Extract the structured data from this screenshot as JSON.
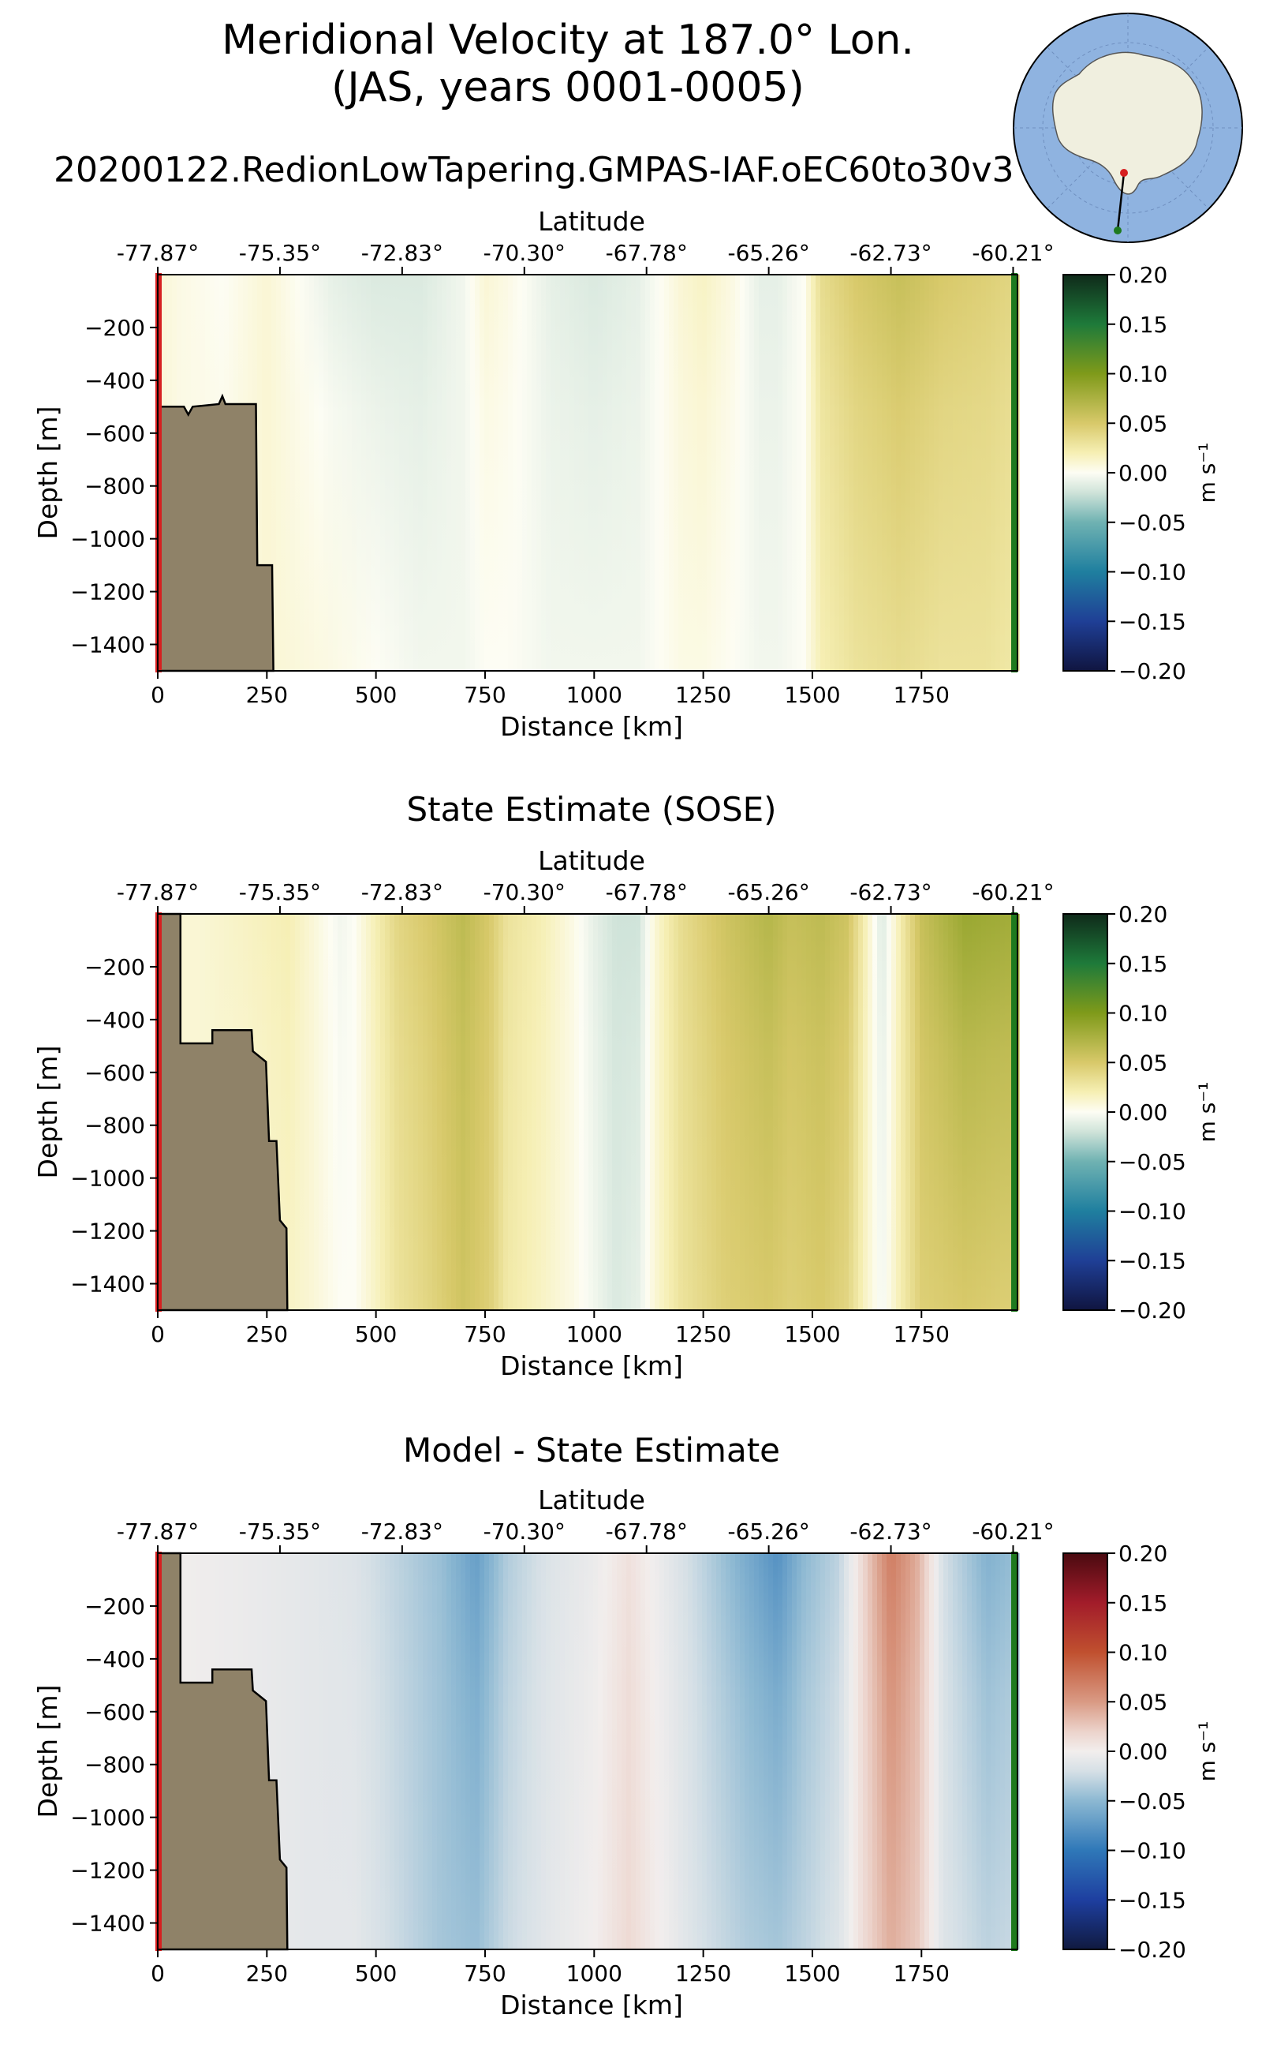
{
  "figure": {
    "title_line1": "Meridional Velocity at 187.0° Lon.",
    "title_line2": "(JAS, years 0001-0005)",
    "subtitle": "20200122.RedionLowTapering.GMPAS-IAF.oEC60to30v3"
  },
  "colors": {
    "land": "#8f8268",
    "start_marker": "#d62020",
    "end_marker": "#1e7a1e",
    "globe_ocean": "#8fb3e0",
    "globe_land": "#f0efdf"
  },
  "chart_data": [
    {
      "id": "model",
      "type": "heatmap",
      "title": "",
      "xlabel": "Distance [km]",
      "ylabel": "Depth [m]",
      "top_axis_label": "Latitude",
      "top_ticks": [
        "-77.87°",
        "-75.35°",
        "-72.83°",
        "-70.30°",
        "-67.78°",
        "-65.26°",
        "-62.73°",
        "-60.21°"
      ],
      "top_tick_km": [
        0,
        280,
        560,
        840,
        1120,
        1400,
        1680,
        1960
      ],
      "xlim": [
        0,
        1970
      ],
      "ylim": [
        -1500,
        0
      ],
      "xticks": [
        0,
        250,
        500,
        750,
        1000,
        1250,
        1500,
        1750
      ],
      "yticks": [
        -200,
        -400,
        -600,
        -800,
        -1000,
        -1200,
        -1400
      ],
      "colorbar": {
        "label": "m s⁻¹",
        "ticks": [
          "0.20",
          "0.15",
          "0.10",
          "0.05",
          "0.00",
          "−0.05",
          "−0.10",
          "−0.15",
          "−0.20"
        ],
        "range": [
          -0.2,
          0.2
        ],
        "cmap": "velocity"
      },
      "bathymetry": [
        [
          0,
          -500
        ],
        [
          60,
          -500
        ],
        [
          70,
          -530
        ],
        [
          80,
          -500
        ],
        [
          140,
          -490
        ],
        [
          148,
          -460
        ],
        [
          155,
          -490
        ],
        [
          225,
          -490
        ],
        [
          228,
          -1100
        ],
        [
          262,
          -1100
        ],
        [
          265,
          -1500
        ]
      ],
      "velocity_profile": {
        "x_km": [
          0,
          50,
          150,
          250,
          400,
          500,
          600,
          700,
          750,
          800,
          900,
          1000,
          1100,
          1150,
          1200,
          1250,
          1320,
          1380,
          1420,
          1480,
          1520,
          1600,
          1700,
          1800,
          1900,
          1970
        ],
        "v_surface": [
          0.01,
          0.005,
          0.0,
          0.01,
          -0.01,
          -0.015,
          -0.015,
          -0.005,
          0.01,
          0.005,
          -0.01,
          -0.015,
          -0.01,
          0.0,
          0.01,
          0.015,
          0.005,
          -0.01,
          -0.01,
          0.0,
          0.035,
          0.05,
          0.06,
          0.05,
          0.045,
          0.04
        ],
        "v_deep": [
          0.01,
          0.005,
          0.005,
          0.01,
          0.005,
          0.0,
          -0.005,
          -0.005,
          0.0,
          0.0,
          -0.005,
          -0.005,
          -0.005,
          0.0,
          0.005,
          0.005,
          0.0,
          -0.005,
          -0.005,
          0.0,
          0.02,
          0.03,
          0.035,
          0.03,
          0.03,
          0.025
        ]
      }
    },
    {
      "id": "sose",
      "type": "heatmap",
      "title": "State Estimate (SOSE)",
      "xlabel": "Distance [km]",
      "ylabel": "Depth [m]",
      "top_axis_label": "Latitude",
      "top_ticks": [
        "-77.87°",
        "-75.35°",
        "-72.83°",
        "-70.30°",
        "-67.78°",
        "-65.26°",
        "-62.73°",
        "-60.21°"
      ],
      "top_tick_km": [
        0,
        280,
        560,
        840,
        1120,
        1400,
        1680,
        1960
      ],
      "xlim": [
        0,
        1970
      ],
      "ylim": [
        -1500,
        0
      ],
      "xticks": [
        0,
        250,
        500,
        750,
        1000,
        1250,
        1500,
        1750
      ],
      "yticks": [
        -200,
        -400,
        -600,
        -800,
        -1000,
        -1200,
        -1400
      ],
      "colorbar": {
        "label": "m s⁻¹",
        "ticks": [
          "0.20",
          "0.15",
          "0.10",
          "0.05",
          "0.00",
          "−0.05",
          "−0.10",
          "−0.15",
          "−0.20"
        ],
        "range": [
          -0.2,
          0.2
        ],
        "cmap": "velocity"
      },
      "bathymetry": [
        [
          0,
          -1500
        ],
        [
          0,
          0
        ],
        [
          52,
          0
        ],
        [
          52,
          -490
        ],
        [
          125,
          -490
        ],
        [
          125,
          -440
        ],
        [
          215,
          -440
        ],
        [
          218,
          -520
        ],
        [
          248,
          -560
        ],
        [
          255,
          -860
        ],
        [
          272,
          -860
        ],
        [
          280,
          -1160
        ],
        [
          295,
          -1190
        ],
        [
          297,
          -1500
        ]
      ],
      "velocity_profile": {
        "x_km": [
          0,
          100,
          200,
          300,
          350,
          420,
          450,
          500,
          550,
          620,
          700,
          760,
          800,
          880,
          950,
          1000,
          1050,
          1100,
          1140,
          1200,
          1300,
          1400,
          1450,
          1520,
          1580,
          1620,
          1660,
          1700,
          1750,
          1850,
          1970
        ],
        "v_surface": [
          0.01,
          0.01,
          0.015,
          0.02,
          0.01,
          -0.005,
          0.0,
          0.02,
          0.04,
          0.05,
          0.065,
          0.05,
          0.03,
          0.02,
          0.005,
          -0.01,
          -0.02,
          -0.02,
          0.01,
          0.035,
          0.055,
          0.07,
          0.06,
          0.065,
          0.055,
          0.02,
          -0.015,
          0.02,
          0.06,
          0.085,
          0.08
        ],
        "v_deep": [
          0.01,
          0.01,
          0.01,
          0.015,
          0.01,
          0.0,
          0.0,
          0.015,
          0.03,
          0.04,
          0.055,
          0.045,
          0.025,
          0.015,
          0.005,
          -0.005,
          -0.015,
          -0.01,
          0.01,
          0.03,
          0.045,
          0.05,
          0.045,
          0.05,
          0.04,
          0.015,
          -0.005,
          0.02,
          0.045,
          0.05,
          0.045
        ]
      }
    },
    {
      "id": "bias",
      "type": "heatmap",
      "title": "Model - State Estimate",
      "xlabel": "Distance [km]",
      "ylabel": "Depth [m]",
      "top_axis_label": "Latitude",
      "top_ticks": [
        "-77.87°",
        "-75.35°",
        "-72.83°",
        "-70.30°",
        "-67.78°",
        "-65.26°",
        "-62.73°",
        "-60.21°"
      ],
      "top_tick_km": [
        0,
        280,
        560,
        840,
        1120,
        1400,
        1680,
        1960
      ],
      "xlim": [
        0,
        1970
      ],
      "ylim": [
        -1500,
        0
      ],
      "xticks": [
        0,
        250,
        500,
        750,
        1000,
        1250,
        1500,
        1750
      ],
      "yticks": [
        -200,
        -400,
        -600,
        -800,
        -1000,
        -1200,
        -1400
      ],
      "colorbar": {
        "label": "m s⁻¹",
        "ticks": [
          "0.20",
          "0.15",
          "0.10",
          "0.05",
          "0.00",
          "−0.05",
          "−0.10",
          "−0.15",
          "−0.20"
        ],
        "range": [
          -0.2,
          0.2
        ],
        "cmap": "bias"
      },
      "bathymetry": [
        [
          0,
          -1500
        ],
        [
          0,
          0
        ],
        [
          52,
          0
        ],
        [
          52,
          -490
        ],
        [
          125,
          -490
        ],
        [
          125,
          -440
        ],
        [
          215,
          -440
        ],
        [
          218,
          -520
        ],
        [
          248,
          -560
        ],
        [
          255,
          -860
        ],
        [
          272,
          -860
        ],
        [
          280,
          -1160
        ],
        [
          295,
          -1190
        ],
        [
          297,
          -1500
        ]
      ],
      "velocity_profile": {
        "x_km": [
          0,
          200,
          350,
          450,
          550,
          650,
          730,
          800,
          900,
          1000,
          1080,
          1150,
          1250,
          1350,
          1420,
          1480,
          1560,
          1620,
          1680,
          1740,
          1800,
          1900,
          1970
        ],
        "v_surface": [
          0.0,
          -0.005,
          -0.01,
          -0.015,
          -0.03,
          -0.045,
          -0.07,
          -0.035,
          -0.015,
          -0.005,
          0.01,
          -0.005,
          -0.03,
          -0.06,
          -0.08,
          -0.05,
          -0.03,
          0.02,
          0.07,
          0.04,
          -0.02,
          -0.055,
          -0.045
        ],
        "v_deep": [
          0.0,
          -0.005,
          -0.01,
          -0.01,
          -0.025,
          -0.04,
          -0.045,
          -0.025,
          -0.01,
          0.0,
          0.015,
          0.0,
          -0.02,
          -0.035,
          -0.04,
          -0.03,
          -0.015,
          0.015,
          0.04,
          0.025,
          -0.015,
          -0.03,
          -0.025
        ]
      }
    }
  ]
}
